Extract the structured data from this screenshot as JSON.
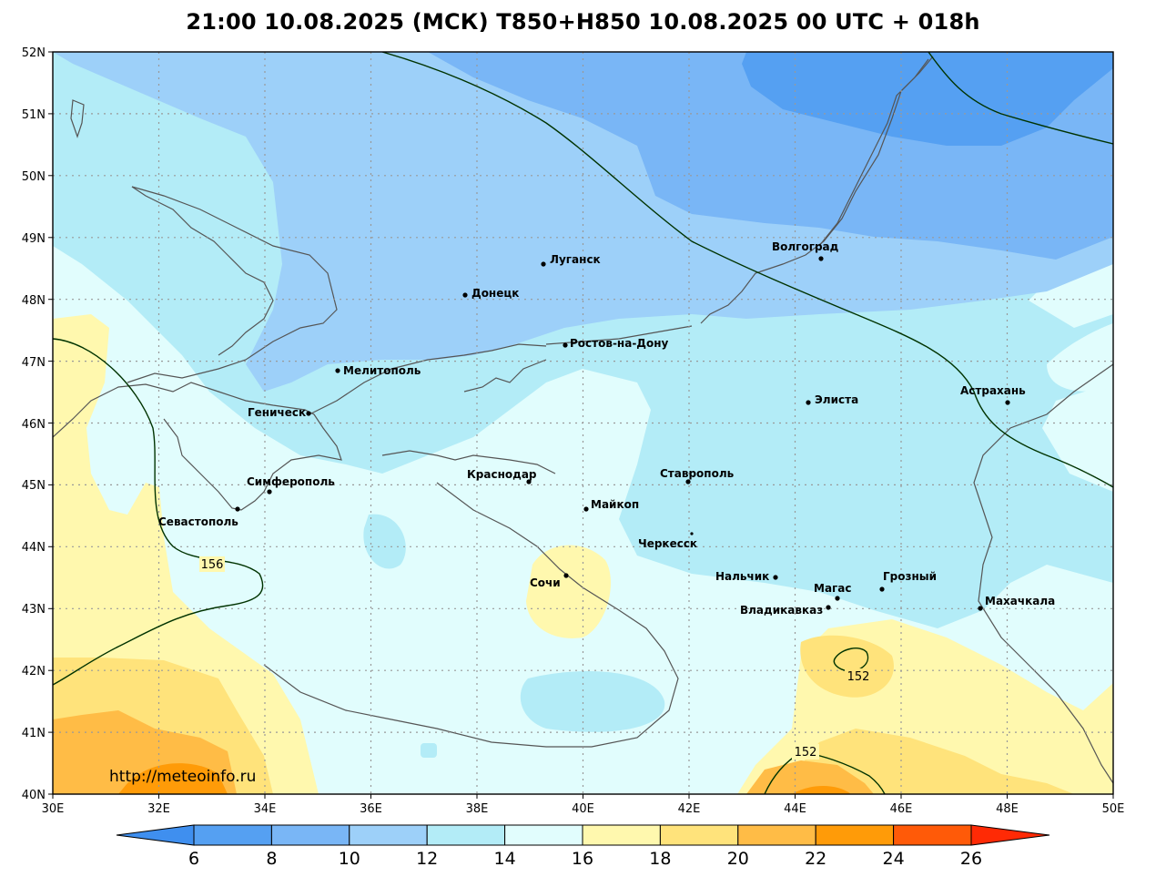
{
  "title": "21:00 10.08.2025 (МСК) T850+H850 10.08.2025 00 UTC + 018h",
  "watermark": "http://meteoinfo.ru",
  "axes": {
    "lon": [
      "30E",
      "32E",
      "34E",
      "36E",
      "38E",
      "40E",
      "42E",
      "44E",
      "46E",
      "48E",
      "50E"
    ],
    "lat": [
      "52N",
      "51N",
      "50N",
      "49N",
      "48N",
      "47N",
      "46N",
      "45N",
      "44N",
      "43N",
      "42N",
      "41N",
      "40N"
    ]
  },
  "colorbar": {
    "ticks": [
      "6",
      "8",
      "10",
      "12",
      "14",
      "16",
      "18",
      "20",
      "22",
      "24",
      "26"
    ],
    "colors": [
      "#3f8fef",
      "#55a0f2",
      "#79b6f6",
      "#9dd0f9",
      "#b3ecf7",
      "#e1fdfd",
      "#fff8ae",
      "#ffe37b",
      "#ffbc46",
      "#ff9b08",
      "#ff5a08",
      "#ff2a05"
    ]
  },
  "contour_labels": [
    "156",
    "152",
    "152"
  ],
  "cities": [
    {
      "name": "Волгоград"
    },
    {
      "name": "Луганск"
    },
    {
      "name": "Донецк"
    },
    {
      "name": "Ростов-на-Дону"
    },
    {
      "name": "Мелитополь"
    },
    {
      "name": "Элиста"
    },
    {
      "name": "Астрахань"
    },
    {
      "name": "Геническ"
    },
    {
      "name": "Симферополь"
    },
    {
      "name": "Краснодар"
    },
    {
      "name": "Ставрополь"
    },
    {
      "name": "Майкоп"
    },
    {
      "name": "Севастополь"
    },
    {
      "name": "Черкесск"
    },
    {
      "name": "Сочи"
    },
    {
      "name": "Нальчик"
    },
    {
      "name": "Магас"
    },
    {
      "name": "Грозный"
    },
    {
      "name": "Махачкала"
    },
    {
      "name": "Владикавказ"
    }
  ]
}
